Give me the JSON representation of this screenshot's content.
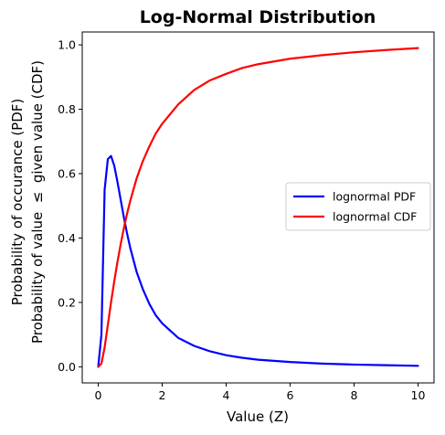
{
  "chart_data": {
    "type": "line",
    "title": "Log-Normal Distribution",
    "xlabel": "Value (Z)",
    "ylabel_line1": "Probability of occurance (PDF)",
    "ylabel_line2": "Probability of value  ≤  given value (CDF)",
    "xlim": [
      -0.5,
      10.5
    ],
    "ylim": [
      -0.05,
      1.04
    ],
    "xticks": [
      0,
      2,
      4,
      6,
      8,
      10
    ],
    "xtick_labels": [
      "0",
      "2",
      "4",
      "6",
      "8",
      "10"
    ],
    "yticks": [
      0.0,
      0.2,
      0.4,
      0.6,
      0.8,
      1.0
    ],
    "ytick_labels": [
      "0.0",
      "0.2",
      "0.4",
      "0.6",
      "0.8",
      "1.0"
    ],
    "grid": false,
    "legend_position": "center-right",
    "series": [
      {
        "name": "lognormal PDF",
        "color": "#0000ff",
        "x": [
          0,
          0.1,
          0.2,
          0.3,
          0.4,
          0.5,
          0.6,
          0.7,
          0.8,
          0.9,
          1.0,
          1.2,
          1.4,
          1.6,
          1.8,
          2.0,
          2.5,
          3.0,
          3.5,
          4.0,
          4.5,
          5.0,
          6.0,
          7.0,
          8.0,
          9.0,
          10.0
        ],
        "y": [
          0.0,
          0.1,
          0.55,
          0.645,
          0.655,
          0.625,
          0.575,
          0.52,
          0.465,
          0.415,
          0.37,
          0.295,
          0.24,
          0.195,
          0.16,
          0.135,
          0.09,
          0.065,
          0.048,
          0.036,
          0.028,
          0.022,
          0.015,
          0.01,
          0.007,
          0.005,
          0.003
        ]
      },
      {
        "name": "lognormal CDF",
        "color": "#ff0000",
        "x": [
          0,
          0.1,
          0.2,
          0.3,
          0.4,
          0.5,
          0.6,
          0.7,
          0.8,
          0.9,
          1.0,
          1.2,
          1.4,
          1.6,
          1.8,
          2.0,
          2.5,
          3.0,
          3.5,
          4.0,
          4.5,
          5.0,
          6.0,
          7.0,
          8.0,
          9.0,
          10.0
        ],
        "y": [
          0.0,
          0.01,
          0.06,
          0.13,
          0.2,
          0.265,
          0.325,
          0.38,
          0.43,
          0.475,
          0.515,
          0.585,
          0.64,
          0.685,
          0.725,
          0.755,
          0.815,
          0.86,
          0.89,
          0.91,
          0.928,
          0.94,
          0.957,
          0.968,
          0.977,
          0.984,
          0.99
        ]
      }
    ]
  }
}
